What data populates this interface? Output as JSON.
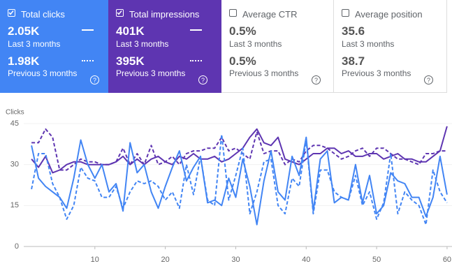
{
  "cards": [
    {
      "label": "Total clicks",
      "checked": true,
      "color": "#4285f4",
      "value": "2.05K",
      "period": "Last 3 months",
      "previous_value": "1.98K",
      "previous_period": "Previous 3 months"
    },
    {
      "label": "Total impressions",
      "checked": true,
      "color": "#5e35b1",
      "value": "401K",
      "period": "Last 3 months",
      "previous_value": "395K",
      "previous_period": "Previous 3 months"
    },
    {
      "label": "Average CTR",
      "checked": false,
      "color": "#ffffff",
      "value": "0.5%",
      "period": "Last 3 months",
      "previous_value": "0.5%",
      "previous_period": "Previous 3 months"
    },
    {
      "label": "Average position",
      "checked": false,
      "color": "#ffffff",
      "value": "35.6",
      "period": "Last 3 months",
      "previous_value": "38.7",
      "previous_period": "Previous 3 months"
    }
  ],
  "chart_data": {
    "type": "line",
    "y_label": "Clicks",
    "x": [
      1,
      2,
      3,
      4,
      5,
      6,
      7,
      8,
      9,
      10,
      11,
      12,
      13,
      14,
      15,
      16,
      17,
      18,
      19,
      20,
      21,
      22,
      23,
      24,
      25,
      26,
      27,
      28,
      29,
      30,
      31,
      32,
      33,
      34,
      35,
      36,
      37,
      38,
      39,
      40,
      41,
      42,
      43,
      44,
      45,
      46,
      47,
      48,
      49,
      50,
      51,
      52,
      53,
      54,
      55,
      56,
      57,
      58,
      59,
      60
    ],
    "xlim": [
      0.3,
      60.7
    ],
    "xticks": [
      10,
      20,
      30,
      40,
      50,
      60
    ],
    "ylim": [
      0,
      45
    ],
    "yticks": [
      0,
      15,
      30,
      45
    ],
    "grid": true,
    "series": [
      {
        "color": "#5e35b1",
        "dashed": true,
        "values": [
          38,
          38,
          43,
          40,
          28,
          28,
          30,
          32,
          31,
          31,
          30,
          30,
          31,
          36,
          30,
          34,
          30,
          37,
          30,
          31,
          33,
          30,
          34,
          35,
          35,
          36,
          36,
          40,
          35,
          36,
          34,
          32,
          42,
          34,
          35,
          35,
          30,
          32,
          31,
          35,
          37,
          37,
          36,
          34,
          32,
          33,
          35,
          36,
          33,
          36,
          36,
          34,
          32,
          32,
          31,
          30,
          34,
          34,
          35,
          35
        ]
      },
      {
        "color": "#5e35b1",
        "dashed": false,
        "values": [
          32,
          29,
          33,
          27,
          28,
          30,
          31,
          31,
          30,
          30,
          30,
          30,
          31,
          33,
          30,
          32,
          30,
          32,
          33,
          31,
          30,
          33,
          32,
          34,
          32,
          32,
          33,
          31,
          32,
          34,
          36,
          40,
          43,
          38,
          37,
          40,
          32,
          31,
          30,
          32,
          34,
          34,
          36,
          36,
          34,
          35,
          33,
          33,
          34,
          34,
          32,
          33,
          34,
          32,
          32,
          31,
          31,
          33,
          35,
          44
        ]
      },
      {
        "color": "#4285f4",
        "dashed": true,
        "values": [
          21,
          34,
          34,
          23,
          18,
          10,
          15,
          29,
          25,
          24,
          18,
          18,
          22,
          14,
          20,
          24,
          23,
          24,
          22,
          17,
          20,
          14,
          30,
          19,
          33,
          17,
          15,
          41,
          17,
          26,
          36,
          12,
          20,
          31,
          32,
          15,
          12,
          25,
          22,
          39,
          12,
          28,
          28,
          20,
          18,
          17,
          26,
          15,
          20,
          10,
          16,
          34,
          12,
          20,
          17,
          15,
          8,
          28,
          20,
          16
        ]
      },
      {
        "color": "#4285f4",
        "dashed": false,
        "values": [
          37,
          25,
          22,
          20,
          18,
          14,
          25,
          39,
          30,
          25,
          30,
          20,
          23,
          13,
          38,
          27,
          30,
          20,
          14,
          22,
          29,
          35,
          24,
          29,
          33,
          16,
          17,
          15,
          25,
          18,
          32,
          22,
          8,
          24,
          35,
          20,
          17,
          33,
          26,
          40,
          13,
          32,
          35,
          16,
          18,
          17,
          30,
          16,
          26,
          12,
          15,
          27,
          24,
          23,
          18,
          18,
          11,
          18,
          33,
          19
        ]
      }
    ]
  }
}
